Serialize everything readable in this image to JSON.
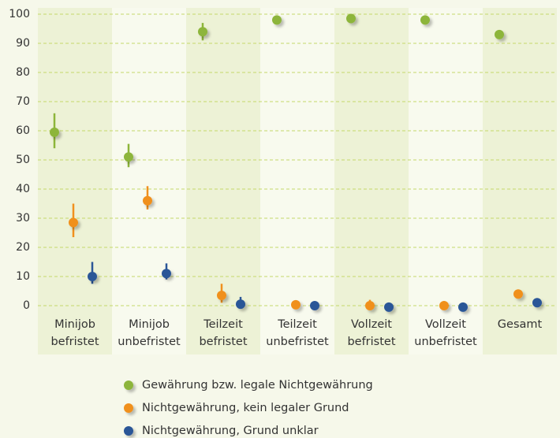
{
  "chart_data": {
    "type": "dotplot",
    "categories": [
      [
        "Minijob",
        "befristet"
      ],
      [
        "Minijob",
        "unbefristet"
      ],
      [
        "Teilzeit",
        "befristet"
      ],
      [
        "Teilzeit",
        "unbefristet"
      ],
      [
        "Vollzeit",
        "befristet"
      ],
      [
        "Vollzeit",
        "unbefristet"
      ],
      [
        "Gesamt"
      ]
    ],
    "series": [
      {
        "name": "Gewährung bzw. legale Nichtgewährung",
        "color": "#8db53a",
        "values": [
          59.5,
          51,
          94,
          98,
          98.5,
          98,
          93
        ],
        "lower": [
          54,
          47.5,
          91,
          null,
          null,
          null,
          null
        ],
        "upper": [
          66,
          55.5,
          97,
          null,
          null,
          null,
          null
        ]
      },
      {
        "name": "Nichtgewährung, kein legaler Grund",
        "color": "#f0901e",
        "values": [
          28.5,
          36,
          3.5,
          0.3,
          0,
          0,
          4
        ],
        "lower": [
          23.5,
          33,
          1,
          null,
          -1,
          null,
          null
        ],
        "upper": [
          35,
          41,
          7.5,
          null,
          2,
          null,
          null
        ]
      },
      {
        "name": "Nichtgewährung, Grund unklar",
        "color": "#2b5697",
        "values": [
          10,
          11,
          0.5,
          0,
          -0.5,
          -0.5,
          1
        ],
        "lower": [
          7.5,
          9,
          0,
          null,
          null,
          null,
          null
        ],
        "upper": [
          15,
          14.5,
          3,
          null,
          null,
          null,
          null
        ]
      }
    ],
    "ylim": [
      0,
      100
    ],
    "yticks": [
      0,
      10,
      20,
      30,
      40,
      50,
      60,
      70,
      80,
      90,
      100
    ],
    "grid": true
  }
}
